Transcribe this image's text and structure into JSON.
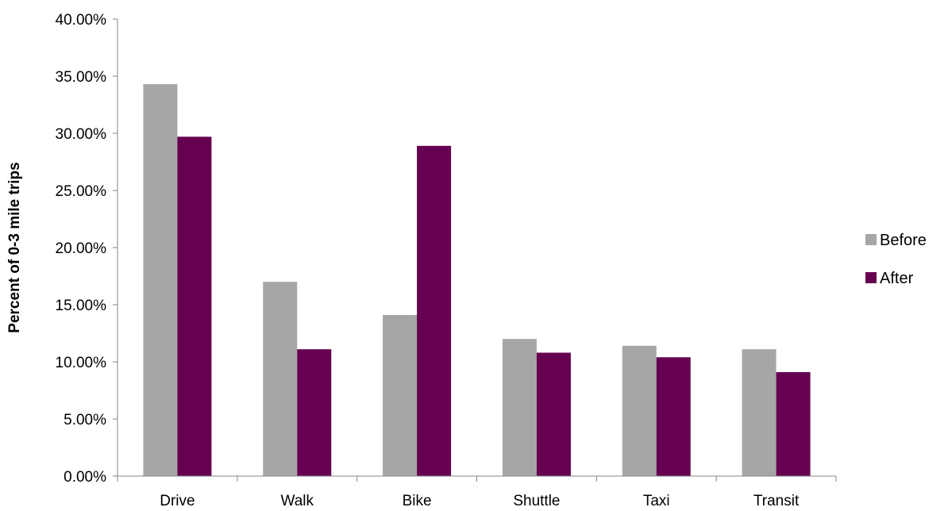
{
  "chart_data": {
    "type": "bar",
    "title": "",
    "xlabel": "",
    "ylabel": "Percent of 0-3 mile trips",
    "ylim": [
      0,
      0.4
    ],
    "y_ticks": [
      "0.00%",
      "5.00%",
      "10.00%",
      "15.00%",
      "20.00%",
      "25.00%",
      "30.00%",
      "35.00%",
      "40.00%"
    ],
    "y_tick_values": [
      0,
      0.05,
      0.1,
      0.15,
      0.2,
      0.25,
      0.3,
      0.35,
      0.4
    ],
    "categories": [
      "Drive",
      "Walk",
      "Bike",
      "Shuttle",
      "Taxi",
      "Transit"
    ],
    "series": [
      {
        "name": "Before",
        "color": "#a6a6a6",
        "values": [
          0.343,
          0.17,
          0.141,
          0.12,
          0.114,
          0.111
        ]
      },
      {
        "name": "After",
        "color": "#660050",
        "values": [
          0.297,
          0.111,
          0.289,
          0.108,
          0.104,
          0.091
        ]
      }
    ],
    "grid": false,
    "legend_position": "right"
  }
}
